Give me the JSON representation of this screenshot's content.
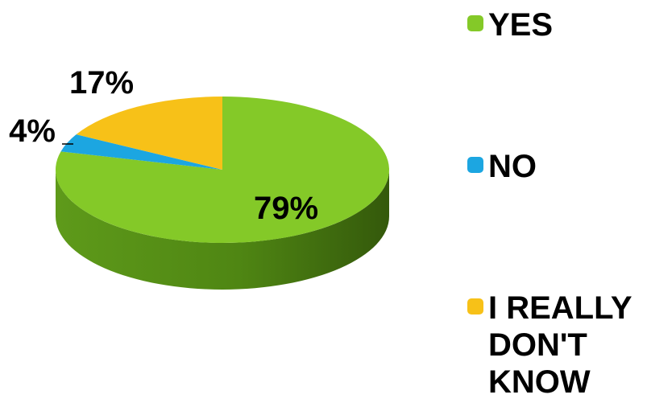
{
  "chart_data": {
    "type": "pie",
    "style": "3d",
    "title": "",
    "categories": [
      "YES",
      "NO",
      "I REALLY DON'T KNOW"
    ],
    "values": [
      79,
      4,
      17
    ],
    "data_labels": [
      "79%",
      "4%",
      "17%"
    ],
    "colors": [
      "#84c928",
      "#1ca6e1",
      "#f7c118"
    ],
    "legend": {
      "placement": "right",
      "entries": [
        "YES",
        "NO",
        "I REALLY DON'T KNOW"
      ]
    }
  }
}
